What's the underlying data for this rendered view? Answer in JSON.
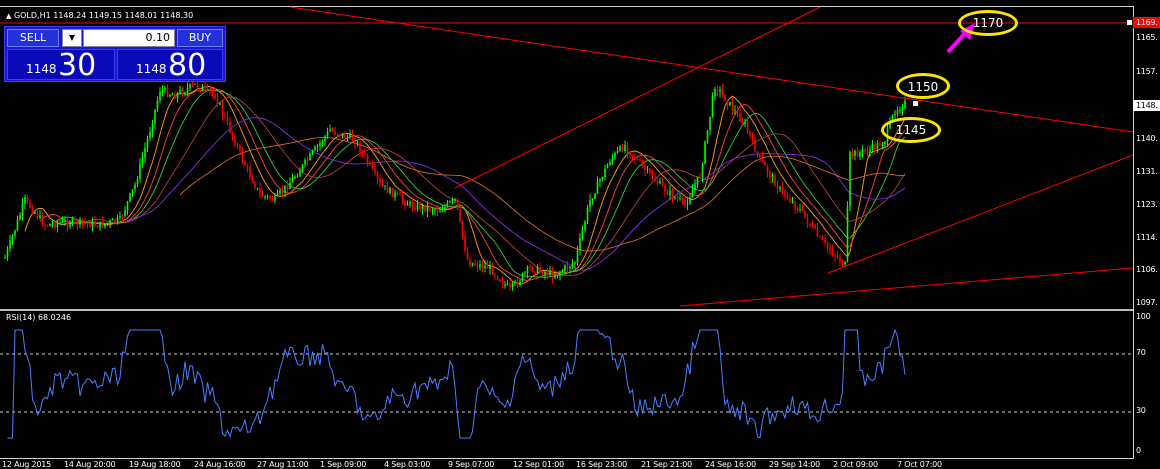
{
  "symbol_header": "GOLD,H1  1148.24 1149.15 1148.01 1148.30",
  "trade_panel": {
    "sell_label": "SELL",
    "buy_label": "BUY",
    "lot_value": "0.10",
    "sell_price_small": "1148",
    "sell_price_big": "30",
    "buy_price_small": "1148",
    "buy_price_big": "80"
  },
  "price_axis": [
    "1165.",
    "1157.",
    "1148.",
    "1140.",
    "1131.",
    "1123.",
    "1114.",
    "1106.",
    "1097."
  ],
  "current_price_tag": "1148.",
  "line_price_tag": "1169.",
  "rsi_header": "RSI(14) 68.0246",
  "rsi_axis": [
    "100",
    "70",
    "30",
    "0"
  ],
  "time_axis": [
    "12 Aug 2015",
    "14 Aug 20:00",
    "19 Aug 18:00",
    "24 Aug 16:00",
    "27 Aug 11:00",
    "1 Sep 09:00",
    "4 Sep 03:00",
    "9 Sep 07:00",
    "12 Sep 01:00",
    "16 Sep 23:00",
    "21 Sep 21:00",
    "24 Sep 16:00",
    "29 Sep 14:00",
    "2 Oct 09:00",
    "7 Oct 07:00"
  ],
  "annotations": [
    "1170",
    "1150",
    "1145"
  ],
  "colors": {
    "background": "#000000",
    "bull_candle": "#00ff00",
    "bear_candle": "#ff0000",
    "trendline": "#ff0000",
    "rsi_line": "#4a7fff",
    "callout": "#ffe400",
    "arrow": "#ff00ff"
  }
}
